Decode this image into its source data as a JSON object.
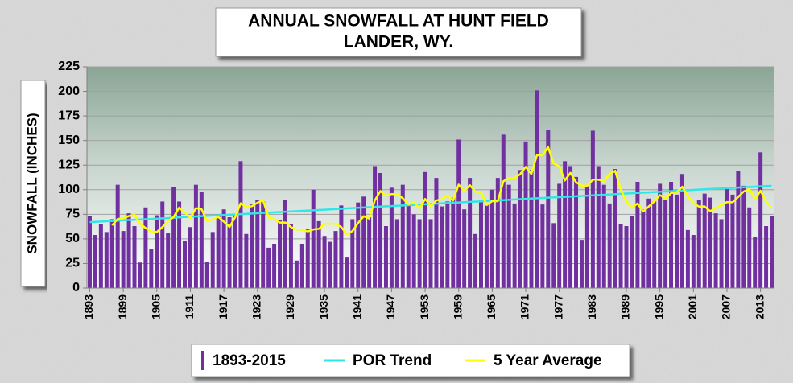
{
  "chart_data": {
    "type": "bar",
    "title": "ANNUAL SNOWFALL AT HUNT FIELD",
    "subtitle": "LANDER, WY.",
    "y_label": "SNOWFALL (INCHES)",
    "ylim": [
      0,
      225
    ],
    "yticks": [
      0,
      25,
      50,
      75,
      100,
      125,
      150,
      175,
      200,
      225
    ],
    "grid": true,
    "legend": "bottom",
    "categories": [
      "1893",
      null,
      null,
      null,
      null,
      null,
      "1899",
      null,
      null,
      null,
      null,
      null,
      "1905",
      null,
      null,
      null,
      null,
      null,
      "1911",
      null,
      null,
      null,
      null,
      null,
      "1917",
      null,
      null,
      null,
      null,
      null,
      "1923",
      null,
      null,
      null,
      null,
      null,
      "1929",
      null,
      null,
      null,
      null,
      null,
      "1935",
      null,
      null,
      null,
      null,
      null,
      "1941",
      null,
      null,
      null,
      null,
      null,
      "1947",
      null,
      null,
      null,
      null,
      null,
      "1953",
      null,
      null,
      null,
      null,
      null,
      "1959",
      null,
      null,
      null,
      null,
      null,
      "1965",
      null,
      null,
      null,
      null,
      null,
      "1971",
      null,
      null,
      null,
      null,
      null,
      "1977",
      null,
      null,
      null,
      null,
      null,
      "1983",
      null,
      null,
      null,
      null,
      null,
      "1989",
      null,
      null,
      null,
      null,
      null,
      "1995",
      null,
      null,
      null,
      null,
      null,
      "2001",
      null,
      null,
      null,
      null,
      null,
      "2007",
      null,
      null,
      null,
      null,
      null,
      "2013",
      null,
      null
    ],
    "series": [
      {
        "name": "1893-2015",
        "type": "bar",
        "color": "#7030a0",
        "values": [
          73,
          54,
          65,
          57,
          70,
          105,
          58,
          76,
          63,
          26,
          82,
          40,
          74,
          88,
          56,
          103,
          88,
          48,
          62,
          105,
          98,
          27,
          57,
          75,
          80,
          72,
          75,
          129,
          55,
          85,
          90,
          88,
          41,
          45,
          69,
          90,
          65,
          28,
          45,
          60,
          100,
          68,
          53,
          47,
          58,
          84,
          31,
          70,
          87,
          93,
          72,
          124,
          117,
          63,
          102,
          70,
          105,
          85,
          75,
          70,
          118,
          70,
          112,
          83,
          88,
          92,
          151,
          80,
          112,
          55,
          90,
          85,
          100,
          112,
          156,
          105,
          86,
          120,
          149,
          120,
          201,
          85,
          161,
          66,
          106,
          129,
          124,
          113,
          49,
          105,
          160,
          124,
          105,
          86,
          121,
          65,
          63,
          73,
          108,
          80,
          91,
          88,
          106,
          90,
          108,
          95,
          116,
          59,
          54,
          90,
          96,
          92,
          76,
          70,
          103,
          95,
          119,
          104,
          82,
          52,
          138,
          63,
          73
        ]
      },
      {
        "name": "POR Trend",
        "type": "line",
        "color": "#33e6e6",
        "values": [
          67.0,
          67.3,
          67.6,
          67.9,
          68.2,
          68.5,
          68.8,
          69.1,
          69.4,
          69.7,
          70.0,
          70.3,
          70.6,
          70.9,
          71.2,
          71.5,
          71.9,
          72.2,
          72.5,
          72.8,
          73.1,
          73.4,
          73.7,
          74.0,
          74.3,
          74.6,
          74.9,
          75.2,
          75.5,
          75.8,
          76.1,
          76.4,
          76.7,
          77.0,
          77.3,
          77.6,
          77.9,
          78.2,
          78.5,
          78.8,
          79.1,
          79.4,
          79.7,
          80.0,
          80.3,
          80.6,
          81.0,
          81.3,
          81.6,
          81.9,
          82.2,
          82.5,
          82.8,
          83.1,
          83.4,
          83.7,
          84.0,
          84.3,
          84.6,
          84.9,
          85.2,
          85.5,
          85.8,
          86.1,
          86.4,
          86.7,
          87.0,
          87.3,
          87.6,
          87.9,
          88.2,
          88.5,
          88.8,
          89.1,
          89.4,
          89.7,
          90.1,
          90.4,
          90.7,
          91.0,
          91.3,
          91.6,
          91.9,
          92.2,
          92.5,
          92.8,
          93.1,
          93.4,
          93.7,
          94.0,
          94.3,
          94.6,
          94.9,
          95.2,
          95.5,
          95.8,
          96.1,
          96.4,
          96.7,
          97.0,
          97.3,
          97.6,
          97.9,
          98.2,
          98.5,
          98.8,
          99.2,
          99.5,
          99.8,
          100.1,
          100.4,
          100.7,
          101.0,
          101.3,
          101.6,
          101.9,
          102.2,
          102.5,
          102.8,
          103.1,
          103.4,
          103.7,
          104.0
        ]
      },
      {
        "name": "5 Year Average",
        "type": "line",
        "color": "#ffff00",
        "values": [
          null,
          null,
          null,
          null,
          63.8,
          70.2,
          71,
          73.2,
          74.4,
          65.6,
          61,
          57.4,
          57,
          62,
          68,
          72.2,
          81.8,
          76.6,
          71.4,
          81.2,
          80.2,
          68,
          69.8,
          72.4,
          67.4,
          62.2,
          71.8,
          86.2,
          82.2,
          83.2,
          86.8,
          89.4,
          71.8,
          69.8,
          66.6,
          66.6,
          62,
          59.4,
          59.4,
          57.6,
          59.6,
          60.2,
          65.2,
          65.6,
          65.2,
          62,
          54.6,
          58,
          66,
          73,
          70.6,
          89.2,
          98.6,
          93.8,
          95.6,
          95.2,
          91.4,
          85,
          87.4,
          81,
          90.6,
          83.6,
          89,
          90.6,
          94.2,
          89,
          105.2,
          98.8,
          104.6,
          98,
          97.6,
          84.4,
          88.4,
          88.4,
          108.6,
          111.6,
          111.8,
          115.8,
          123.2,
          116,
          135.2,
          135,
          143.2,
          126.6,
          123.8,
          109.4,
          117.2,
          107.6,
          104.2,
          104,
          110.2,
          110.2,
          108.6,
          116,
          119.2,
          100.2,
          88,
          81.6,
          86,
          77.8,
          83,
          88,
          94.6,
          91,
          96.6,
          97.4,
          103,
          93.6,
          86.4,
          82.8,
          83,
          78.2,
          81.6,
          84.8,
          87.4,
          87.2,
          92.6,
          98.2,
          100.6,
          90.4,
          99,
          87.8,
          81.6
        ]
      }
    ]
  }
}
